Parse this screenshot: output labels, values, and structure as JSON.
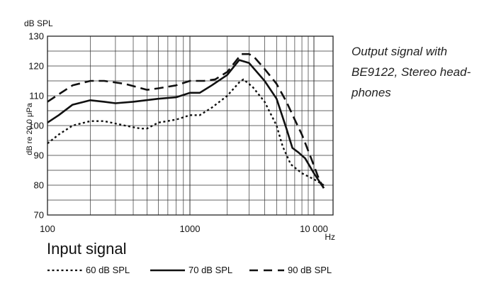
{
  "chart_data": {
    "type": "line",
    "title": "",
    "ylabel": "dB re 20,0 μPa",
    "yunit": "dB SPL",
    "xunit": "Hz",
    "xscale": "log",
    "xlim": [
      100,
      20000
    ],
    "ylim": [
      70,
      130
    ],
    "grid": true,
    "x_tick_labels": [
      "100",
      "1000",
      "10 000"
    ],
    "y_tick_labels": [
      "70",
      "80",
      "90",
      "100",
      "110",
      "120",
      "130"
    ],
    "series": [
      {
        "name": "60 dB SPL",
        "style": "dotted",
        "points": [
          [
            100,
            94
          ],
          [
            120,
            97
          ],
          [
            150,
            100
          ],
          [
            200,
            101.5
          ],
          [
            250,
            101.5
          ],
          [
            350,
            100
          ],
          [
            450,
            99
          ],
          [
            500,
            99
          ],
          [
            600,
            101
          ],
          [
            800,
            102
          ],
          [
            1000,
            103.5
          ],
          [
            1200,
            103.5
          ],
          [
            1500,
            106
          ],
          [
            2000,
            110
          ],
          [
            2500,
            114.5
          ],
          [
            2700,
            115.5
          ],
          [
            3200,
            113
          ],
          [
            4000,
            108
          ],
          [
            5000,
            100
          ],
          [
            5600,
            93
          ],
          [
            6500,
            87
          ],
          [
            8000,
            84
          ],
          [
            10000,
            82
          ],
          [
            12000,
            80
          ]
        ]
      },
      {
        "name": "70 dB SPL",
        "style": "solid",
        "points": [
          [
            100,
            101
          ],
          [
            120,
            103.5
          ],
          [
            150,
            107
          ],
          [
            200,
            108.5
          ],
          [
            250,
            108
          ],
          [
            300,
            107.5
          ],
          [
            400,
            108
          ],
          [
            600,
            109
          ],
          [
            800,
            109.5
          ],
          [
            1000,
            111
          ],
          [
            1200,
            111
          ],
          [
            1500,
            113.5
          ],
          [
            2000,
            117
          ],
          [
            2500,
            122
          ],
          [
            3000,
            121
          ],
          [
            4000,
            115
          ],
          [
            5000,
            109
          ],
          [
            6000,
            99
          ],
          [
            6700,
            92.5
          ],
          [
            7500,
            91
          ],
          [
            8500,
            89
          ],
          [
            10000,
            84
          ],
          [
            12000,
            79
          ]
        ]
      },
      {
        "name": "90 dB SPL",
        "style": "dashed",
        "points": [
          [
            100,
            108
          ],
          [
            120,
            110.5
          ],
          [
            150,
            113.5
          ],
          [
            200,
            115
          ],
          [
            250,
            115
          ],
          [
            350,
            114
          ],
          [
            500,
            112
          ],
          [
            600,
            112.5
          ],
          [
            800,
            113.5
          ],
          [
            1000,
            115
          ],
          [
            1300,
            115
          ],
          [
            1600,
            115.5
          ],
          [
            2000,
            118
          ],
          [
            2600,
            124
          ],
          [
            3000,
            124
          ],
          [
            3300,
            123
          ],
          [
            4000,
            119
          ],
          [
            5000,
            114
          ],
          [
            6000,
            108
          ],
          [
            7000,
            102
          ],
          [
            8000,
            97
          ],
          [
            9500,
            89
          ],
          [
            11000,
            82
          ],
          [
            12000,
            79
          ]
        ]
      }
    ],
    "caption": [
      "Output signal with",
      "BE9122, Stereo head-",
      "phones"
    ],
    "legend_title": "Input signal",
    "legend_placement": "bottom"
  }
}
